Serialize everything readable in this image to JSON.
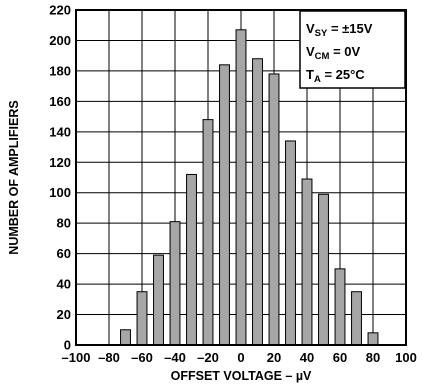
{
  "chart_data": {
    "type": "bar",
    "x": [
      -70,
      -60,
      -50,
      -40,
      -30,
      -20,
      -10,
      0,
      10,
      20,
      30,
      40,
      50,
      60,
      70,
      80
    ],
    "values": [
      10,
      35,
      59,
      81,
      112,
      148,
      184,
      207,
      188,
      178,
      134,
      109,
      99,
      50,
      35,
      8
    ],
    "xlabel": "OFFSET VOLTAGE – µV",
    "ylabel": "NUMBER OF AMPLIFIERS",
    "xlim": [
      -100,
      100
    ],
    "ylim": [
      0,
      220
    ],
    "xticks": [
      "–100",
      "–80",
      "–60",
      "–40",
      "–20",
      "0",
      "20",
      "40",
      "60",
      "80",
      "100"
    ],
    "yticks": [
      "0",
      "20",
      "40",
      "60",
      "80",
      "100",
      "120",
      "140",
      "160",
      "180",
      "200",
      "220"
    ],
    "grid": true,
    "bar_color": "#a6a6a6",
    "annotations": [
      {
        "main": "V",
        "sub": "SY",
        "rest": " = ±15V"
      },
      {
        "main": "V",
        "sub": "CM",
        "rest": " = 0V"
      },
      {
        "main": "T",
        "sub": "A",
        "rest": " = 25°C"
      }
    ]
  }
}
